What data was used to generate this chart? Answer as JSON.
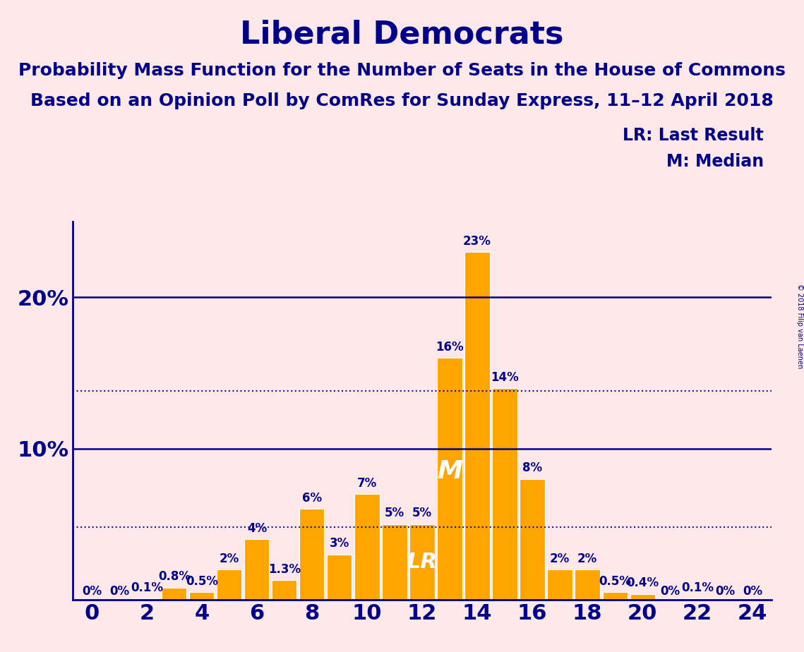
{
  "title": "Liberal Democrats",
  "subtitle1": "Probability Mass Function for the Number of Seats in the House of Commons",
  "subtitle2": "Based on an Opinion Poll by ComRes for Sunday Express, 11–12 April 2018",
  "background_color": "#fce8e8",
  "bar_color": "#FFA500",
  "axis_color": "#00008B",
  "text_color": "#00008B",
  "seats": [
    0,
    1,
    2,
    3,
    4,
    5,
    6,
    7,
    8,
    9,
    10,
    11,
    12,
    13,
    14,
    15,
    16,
    17,
    18,
    19,
    20,
    21,
    22,
    23,
    24
  ],
  "values": [
    0.0,
    0.0,
    0.1,
    0.8,
    0.5,
    2.0,
    4.0,
    1.3,
    6.0,
    3.0,
    7.0,
    5.0,
    5.0,
    16.0,
    23.0,
    14.0,
    8.0,
    2.0,
    2.0,
    0.5,
    0.4,
    0.0,
    0.1,
    0.0,
    0.0
  ],
  "labels": [
    "0%",
    "0%",
    "0.1%",
    "0.8%",
    "0.5%",
    "2%",
    "4%",
    "1.3%",
    "6%",
    "3%",
    "7%",
    "5%",
    "5%",
    "16%",
    "23%",
    "14%",
    "8%",
    "2%",
    "2%",
    "0.5%",
    "0.4%",
    "0%",
    "0.1%",
    "0%",
    "0%"
  ],
  "ylim": [
    0,
    25
  ],
  "dotted_lines": [
    4.8,
    13.8
  ],
  "median_seat": 13,
  "lr_seat": 12,
  "legend_lr": "LR: Last Result",
  "legend_m": "M: Median",
  "copyright": "© 2018 Filip van Laenen",
  "title_fontsize": 32,
  "subtitle_fontsize": 18,
  "label_fontsize": 12,
  "axis_label_fontsize": 22,
  "bar_width": 0.9
}
